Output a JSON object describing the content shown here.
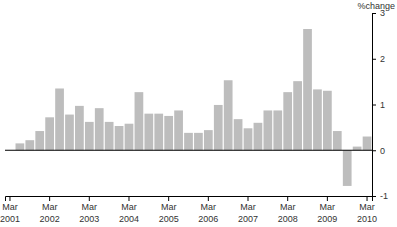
{
  "chart_data": {
    "type": "bar",
    "y_label": "%change",
    "categories": [
      "Mar 2001",
      null,
      null,
      null,
      "Mar 2002",
      null,
      null,
      null,
      "Mar 2003",
      null,
      null,
      null,
      "Mar 2004",
      null,
      null,
      null,
      "Mar 2005",
      null,
      null,
      null,
      "Mar 2006",
      null,
      null,
      null,
      "Mar 2007",
      null,
      null,
      null,
      "Mar 2008",
      null,
      null,
      null,
      "Mar 2009",
      null,
      null,
      null,
      "Mar 2010"
    ],
    "values": [
      null,
      0.15,
      0.22,
      0.42,
      0.72,
      1.35,
      0.78,
      0.97,
      0.62,
      0.92,
      0.62,
      0.53,
      0.58,
      1.27,
      0.8,
      0.8,
      0.75,
      0.87,
      0.38,
      0.38,
      0.44,
      0.99,
      1.53,
      0.68,
      0.48,
      0.6,
      0.87,
      0.87,
      1.27,
      1.51,
      2.65,
      1.33,
      1.3,
      0.42,
      -0.78,
      0.08,
      0.3
    ],
    "color": "#bdbdbd",
    "ylim": [
      -1,
      3
    ],
    "yticks": [
      -1,
      0,
      1,
      2,
      3
    ],
    "grid": false
  }
}
